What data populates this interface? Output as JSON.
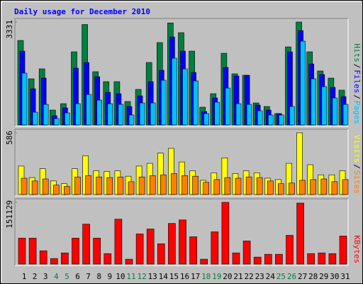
{
  "chart_data": [
    {
      "type": "bar",
      "title": "Daily usage for December 2010",
      "ylim": [
        0,
        3331
      ],
      "yticks": [
        3331
      ],
      "legend_separator": "/",
      "series": [
        {
          "name": "Pages",
          "color": "#00c0ff",
          "values": [
            1677,
            413,
            666,
            207,
            390,
            689,
            988,
            804,
            689,
            666,
            322,
            712,
            712,
            1447,
            2159,
            1815,
            1424,
            368,
            735,
            1194,
            689,
            666,
            459,
            322,
            322,
            598,
            2711,
            1493,
            1240,
            873,
            666
          ]
        },
        {
          "name": "Files",
          "color": "#0000ff",
          "values": [
            2389,
            1171,
            1516,
            299,
            551,
            1838,
            2021,
            1562,
            1057,
            1011,
            597,
            942,
            1401,
            1769,
            2848,
            2389,
            1700,
            436,
            873,
            1861,
            1585,
            1608,
            643,
            482,
            368,
            2366,
            3055,
            1975,
            1631,
            1217,
            919
          ]
        },
        {
          "name": "Hits",
          "color": "#008040",
          "values": [
            2734,
            1493,
            1815,
            482,
            689,
            2366,
            3250,
            1723,
            1401,
            1401,
            758,
            1149,
            2021,
            2665,
            3300,
            2986,
            2389,
            574,
            1011,
            2320,
            1654,
            1608,
            712,
            597,
            368,
            2527,
            3331,
            2366,
            1746,
            1516,
            1126
          ]
        }
      ]
    },
    {
      "type": "bar",
      "ylim": [
        0,
        586
      ],
      "yticks": [
        586
      ],
      "series": [
        {
          "name": "Sites",
          "color": "#ff8000",
          "values": [
            155,
            129,
            148,
            90,
            77,
            167,
            180,
            167,
            161,
            167,
            122,
            167,
            180,
            187,
            200,
            180,
            174,
            116,
            142,
            161,
            155,
            167,
            161,
            129,
            103,
            109,
            135,
            142,
            148,
            122,
            142
          ]
        },
        {
          "name": "Visits",
          "color": "#ffff00",
          "values": [
            270,
            161,
            245,
            129,
            103,
            245,
            367,
            225,
            219,
            225,
            174,
            270,
            296,
            393,
            438,
            309,
            225,
            135,
            206,
            348,
            200,
            225,
            206,
            155,
            142,
            296,
            586,
            283,
            187,
            187,
            225
          ]
        }
      ]
    },
    {
      "type": "bar",
      "ylim": [
        0,
        151129
      ],
      "yticks": [
        151129
      ],
      "categories": [
        "1",
        "2",
        "3",
        "4",
        "5",
        "6",
        "7",
        "8",
        "9",
        "10",
        "11",
        "12",
        "13",
        "14",
        "15",
        "16",
        "17",
        "18",
        "19",
        "20",
        "21",
        "22",
        "23",
        "24",
        "25",
        "26",
        "27",
        "28",
        "29",
        "30",
        "31"
      ],
      "category_colors": [
        "#000000",
        "#000000",
        "#000000",
        "#008040",
        "#008040",
        "#000000",
        "#000000",
        "#000000",
        "#000000",
        "#000000",
        "#008040",
        "#008040",
        "#000000",
        "#000000",
        "#000000",
        "#000000",
        "#000000",
        "#008040",
        "#008040",
        "#000000",
        "#000000",
        "#000000",
        "#000000",
        "#000000",
        "#008040",
        "#008040",
        "#000000",
        "#000000",
        "#000000",
        "#000000",
        "#000000"
      ],
      "series": [
        {
          "name": "KBytes",
          "color": "#ff0000",
          "values": [
            63529,
            63529,
            32623,
            13736,
            27472,
            63529,
            97869,
            63529,
            25755,
            109888,
            12019,
            73831,
            85850,
            49793,
            99586,
            108171,
            66963,
            12019,
            78982,
            151129,
            27472,
            56661,
            17170,
            24038,
            24038,
            70397,
            149383,
            25755,
            27472,
            25755,
            68680
          ]
        }
      ]
    }
  ]
}
